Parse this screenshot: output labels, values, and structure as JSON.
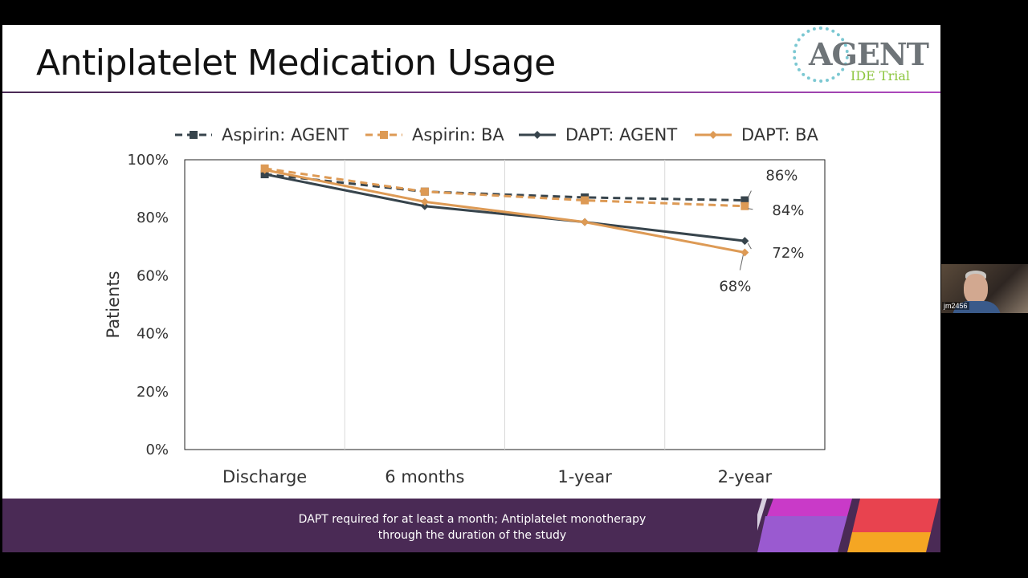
{
  "slide": {
    "title": "Antiplatelet Medication Usage",
    "logo": {
      "word": "AGENT",
      "sub": "IDE Trial"
    },
    "banner": {
      "line1": "DAPT required for at least a month; Antiplatelet monotherapy",
      "line2": "through the duration of the study"
    }
  },
  "video": {
    "label": "jm2456"
  },
  "colors": {
    "agent_series": "#37444c",
    "ba_series": "#dd9a55",
    "banner": "#4a2a55",
    "accent_pink": "#c93ac8",
    "accent_red": "#e8434f",
    "accent_purple": "#9a5ad0",
    "accent_orange": "#f5a623"
  },
  "chart_data": {
    "type": "line",
    "title": "",
    "xlabel": "",
    "ylabel": "Patients",
    "categories": [
      "Discharge",
      "6 months",
      "1-year",
      "2-year"
    ],
    "yticks": [
      "0%",
      "20%",
      "40%",
      "60%",
      "80%",
      "100%"
    ],
    "ylim": [
      0,
      100
    ],
    "grid": "vertical",
    "legend_position": "top",
    "series": [
      {
        "name": "Aspirin: AGENT",
        "values": [
          95,
          89,
          87,
          86
        ],
        "style": "dashed",
        "marker": "square",
        "color": "#37444c"
      },
      {
        "name": "Aspirin: BA",
        "values": [
          97,
          89,
          86,
          84
        ],
        "style": "dashed",
        "marker": "square",
        "color": "#dd9a55"
      },
      {
        "name": "DAPT: AGENT",
        "values": [
          95,
          84,
          78.5,
          72
        ],
        "style": "solid",
        "marker": "diamond",
        "color": "#37444c"
      },
      {
        "name": "DAPT: BA",
        "values": [
          96.5,
          85.5,
          78.5,
          68
        ],
        "style": "solid",
        "marker": "diamond",
        "color": "#dd9a55"
      }
    ],
    "annotations": [
      {
        "series": 0,
        "point": 3,
        "text": "86%"
      },
      {
        "series": 1,
        "point": 3,
        "text": "84%"
      },
      {
        "series": 2,
        "point": 3,
        "text": "72%"
      },
      {
        "series": 3,
        "point": 3,
        "text": "68%"
      }
    ]
  }
}
